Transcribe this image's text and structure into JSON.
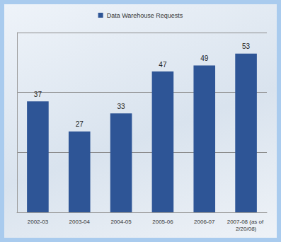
{
  "chart_data": {
    "type": "bar",
    "categories": [
      "2002-03",
      "2003-04",
      "2004-05",
      "2005-06",
      "2006-07",
      "2007-08 (as of 2/20/08)"
    ],
    "series": [
      {
        "name": "Data Warehouse Requests",
        "color": "#2e5596",
        "values": [
          37,
          27,
          33,
          47,
          49,
          53
        ]
      }
    ],
    "ylim": [
      0,
      60
    ],
    "yticks": [
      0,
      20,
      40,
      60
    ],
    "grid": true,
    "data_labels": true,
    "tick_labels": "x",
    "legend": "top"
  }
}
